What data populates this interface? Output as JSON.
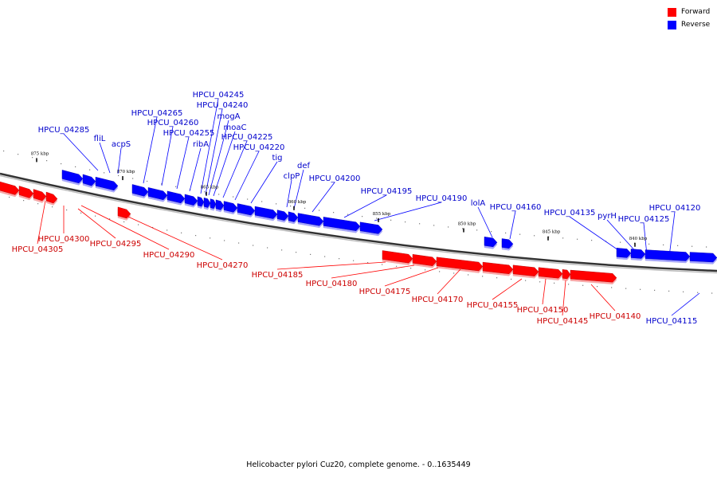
{
  "legend": {
    "forward_label": "Forward",
    "reverse_label": "Reverse",
    "forward_color": "#ff0000",
    "reverse_color": "#0000ff"
  },
  "caption": "Helicobacter pylori Cuz20, complete genome. - 0..1635449",
  "ticks": [
    "875 kbp",
    "870 kbp",
    "865 kbp",
    "860 kbp",
    "855 kbp",
    "850 kbp",
    "845 kbp",
    "840 kbp"
  ],
  "genes": [
    {
      "name": "HPCU_04305",
      "strand": "forward"
    },
    {
      "name": "HPCU_04300",
      "strand": "forward"
    },
    {
      "name": "HPCU_04295",
      "strand": "forward"
    },
    {
      "name": "HPCU_04290",
      "strand": "forward"
    },
    {
      "name": "HPCU_04285",
      "strand": "reverse"
    },
    {
      "name": "fliL",
      "strand": "reverse"
    },
    {
      "name": "acpS",
      "strand": "reverse"
    },
    {
      "name": "HPCU_04270",
      "strand": "forward"
    },
    {
      "name": "HPCU_04265",
      "strand": "reverse"
    },
    {
      "name": "HPCU_04260",
      "strand": "reverse"
    },
    {
      "name": "HPCU_04255",
      "strand": "reverse"
    },
    {
      "name": "ribA",
      "strand": "reverse"
    },
    {
      "name": "HPCU_04245",
      "strand": "reverse"
    },
    {
      "name": "HPCU_04240",
      "strand": "reverse"
    },
    {
      "name": "mogA",
      "strand": "reverse"
    },
    {
      "name": "moaC",
      "strand": "reverse"
    },
    {
      "name": "HPCU_04225",
      "strand": "reverse"
    },
    {
      "name": "HPCU_04220",
      "strand": "reverse"
    },
    {
      "name": "tig",
      "strand": "reverse"
    },
    {
      "name": "clpP",
      "strand": "reverse"
    },
    {
      "name": "def",
      "strand": "reverse"
    },
    {
      "name": "HPCU_04200",
      "strand": "reverse"
    },
    {
      "name": "HPCU_04195",
      "strand": "reverse"
    },
    {
      "name": "HPCU_04190",
      "strand": "reverse"
    },
    {
      "name": "HPCU_04185",
      "strand": "forward"
    },
    {
      "name": "HPCU_04180",
      "strand": "forward"
    },
    {
      "name": "HPCU_04175",
      "strand": "forward"
    },
    {
      "name": "HPCU_04170",
      "strand": "forward"
    },
    {
      "name": "lolA",
      "strand": "reverse"
    },
    {
      "name": "HPCU_04160",
      "strand": "reverse"
    },
    {
      "name": "HPCU_04155",
      "strand": "forward"
    },
    {
      "name": "HPCU_04150",
      "strand": "forward"
    },
    {
      "name": "HPCU_04145",
      "strand": "forward"
    },
    {
      "name": "HPCU_04140",
      "strand": "forward"
    },
    {
      "name": "HPCU_04135",
      "strand": "reverse"
    },
    {
      "name": "pyrH",
      "strand": "reverse"
    },
    {
      "name": "HPCU_04125",
      "strand": "reverse"
    },
    {
      "name": "HPCU_04120",
      "strand": "reverse"
    },
    {
      "name": "HPCU_04115",
      "strand": "reverse"
    }
  ]
}
